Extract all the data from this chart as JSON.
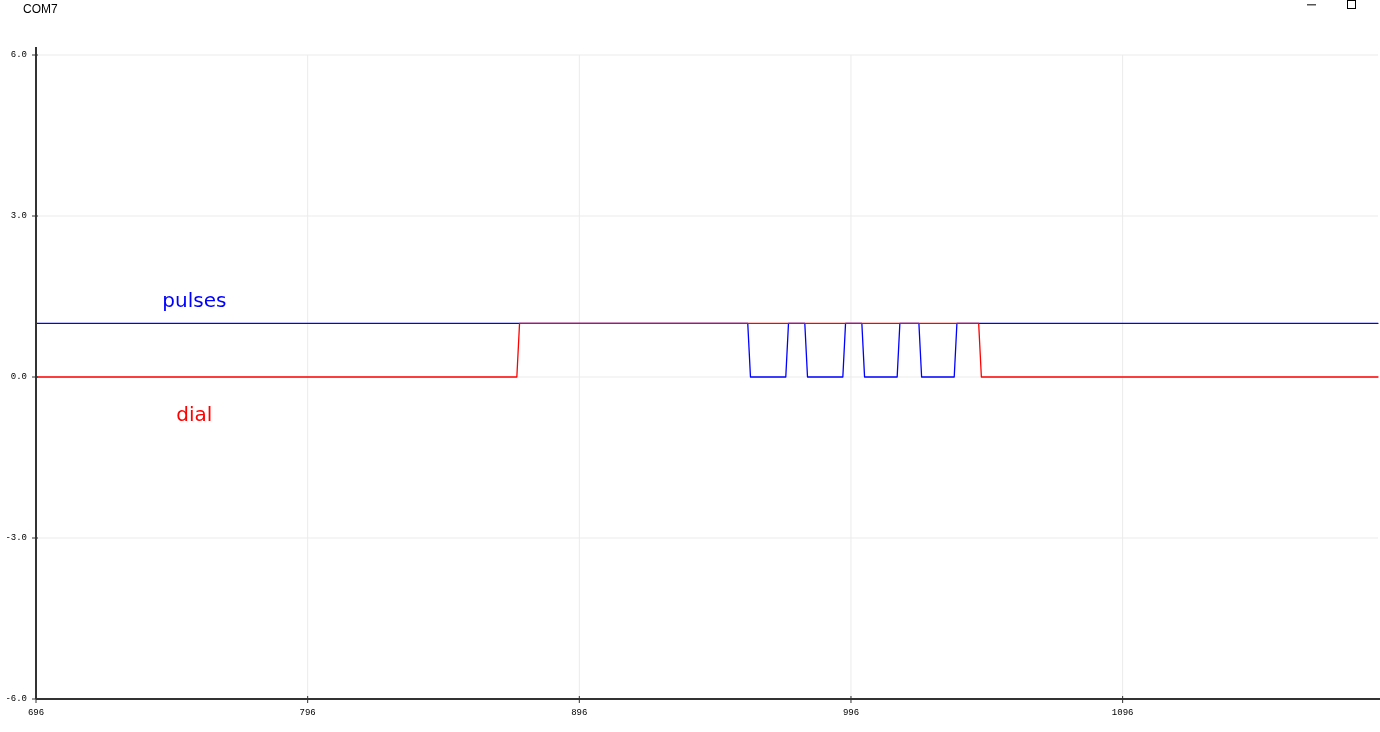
{
  "chart_data": {
    "type": "line",
    "title": "COM7",
    "series": [
      {
        "name": "pulses",
        "color": "#0000ff",
        "x": [
          696,
          958,
          959,
          972,
          973,
          979,
          980,
          993,
          994,
          1000,
          1001,
          1013,
          1014,
          1021,
          1022,
          1034,
          1035,
          1190
        ],
        "values": [
          1,
          1,
          0,
          0,
          1,
          1,
          0,
          0,
          1,
          1,
          0,
          0,
          1,
          1,
          0,
          0,
          1,
          1
        ]
      },
      {
        "name": "dial",
        "color": "#ff0000",
        "x": [
          696,
          873,
          874,
          1043,
          1044,
          1190
        ],
        "values": [
          0,
          0,
          1,
          1,
          0,
          0
        ]
      }
    ],
    "xlim": [
      696,
      1190
    ],
    "xticks": [
      696,
      796,
      896,
      996,
      1096
    ],
    "ylim": [
      -6,
      6
    ],
    "yticks": [
      {
        "value": 6,
        "label": "6.0"
      },
      {
        "value": 3,
        "label": "3.0"
      },
      {
        "value": 0,
        "label": "0.0"
      },
      {
        "value": -3,
        "label": "-3.0"
      },
      {
        "value": -6,
        "label": "-6.0"
      }
    ],
    "grid": true,
    "line_style": "solid"
  }
}
